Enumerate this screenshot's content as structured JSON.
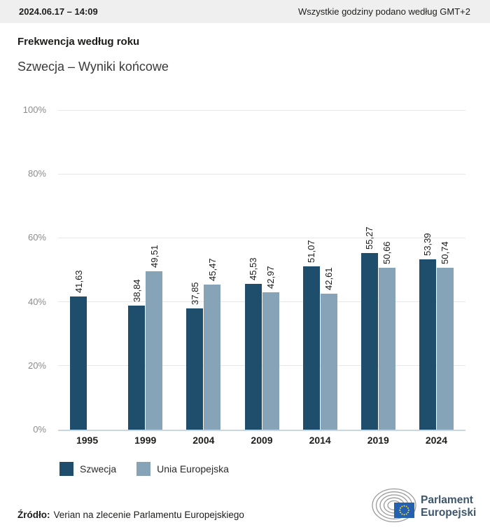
{
  "header": {
    "timestamp": "2024.06.17 – 14:09",
    "timezone_note": "Wszystkie godziny podano według GMT+2"
  },
  "title": "Frekwencja według roku",
  "subtitle": "Szwecja – Wyniki końcowe",
  "chart_data": {
    "type": "bar",
    "title": "Frekwencja według roku",
    "subtitle": "Szwecja – Wyniki końcowe",
    "categories": [
      "1995",
      "1999",
      "2004",
      "2009",
      "2014",
      "2019",
      "2024"
    ],
    "series": [
      {
        "name": "Szwecja",
        "color": "#1f4e6d",
        "values": [
          41.63,
          38.84,
          37.85,
          45.53,
          51.07,
          55.27,
          53.39
        ],
        "value_labels": [
          "41,63",
          "38,84",
          "37,85",
          "45,53",
          "51,07",
          "55,27",
          "53,39"
        ]
      },
      {
        "name": "Unia Europejska",
        "color": "#87a3b7",
        "values": [
          null,
          49.51,
          45.47,
          42.97,
          42.61,
          50.66,
          50.74
        ],
        "value_labels": [
          null,
          "49,51",
          "45,47",
          "42,97",
          "42,61",
          "50,66",
          "50,74"
        ]
      }
    ],
    "ylim": [
      0,
      100
    ],
    "yticks": [
      0,
      20,
      40,
      60,
      80,
      100
    ],
    "ytick_suffix": "%",
    "grid": "horizontal",
    "legend_position": "bottom-left",
    "value_label_rotation": 90,
    "decimal_separator": ","
  },
  "legend": {
    "items": [
      {
        "label": "Szwecja",
        "color": "#1f4e6d"
      },
      {
        "label": "Unia Europejska",
        "color": "#87a3b7"
      }
    ]
  },
  "footer": {
    "source_label": "Źródło:",
    "source_text": "Verian na zlecenie Parlamentu Europejskiego"
  },
  "logo": {
    "line1": "Parlament",
    "line2": "Europejski",
    "flag_color": "#2461ae",
    "star_color": "#ffd733",
    "arc_color": "#9b9b9b",
    "text_color": "#3d566c"
  }
}
